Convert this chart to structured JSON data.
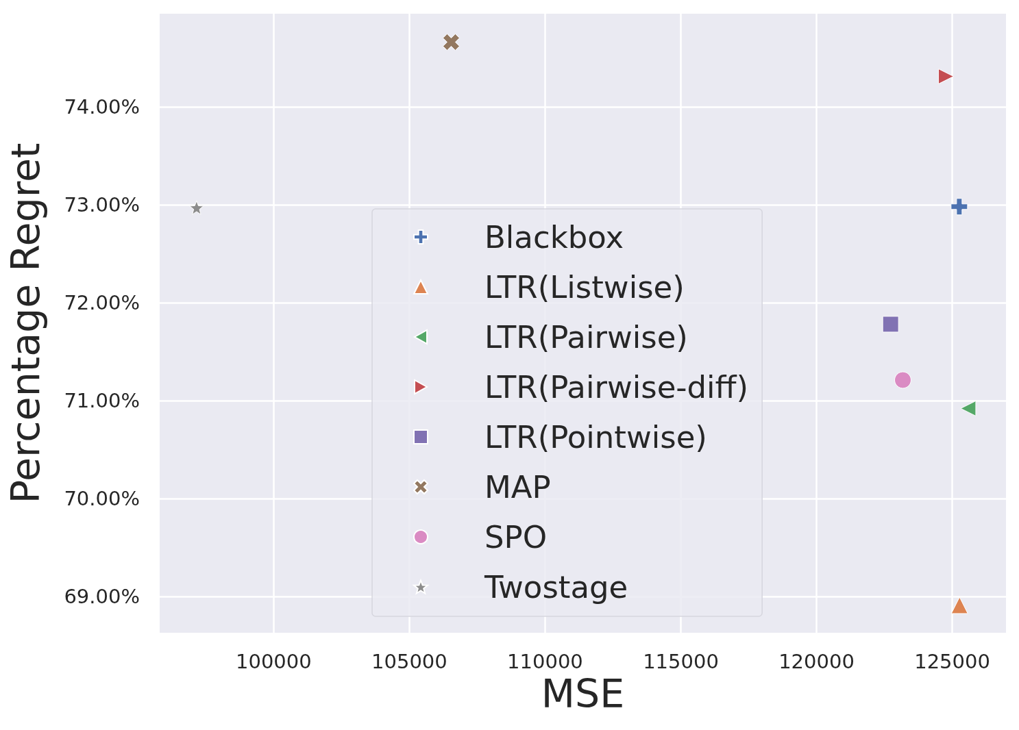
{
  "chart_data": {
    "type": "scatter",
    "xlabel": "MSE",
    "ylabel": "Percentage Regret",
    "xlim": [
      95800,
      126980
    ],
    "ylim": [
      68.63,
      74.95
    ],
    "xticks": [
      100000,
      105000,
      110000,
      115000,
      120000,
      125000
    ],
    "yticks": [
      {
        "value": 69,
        "label": "69.00%"
      },
      {
        "value": 70,
        "label": "70.00%"
      },
      {
        "value": 71,
        "label": "71.00%"
      },
      {
        "value": 72,
        "label": "72.00%"
      },
      {
        "value": 73,
        "label": "73.00%"
      },
      {
        "value": 74,
        "label": "74.00%"
      }
    ],
    "grid": true,
    "legend": "bottom",
    "series": [
      {
        "name": "Blackbox",
        "color": "#4c72b0",
        "marker": "plus",
        "x": [
          125260
        ],
        "values": [
          72.98
        ]
      },
      {
        "name": "LTR(Listwise)",
        "color": "#dd8452",
        "marker": "triangle",
        "x": [
          125270
        ],
        "values": [
          68.91
        ]
      },
      {
        "name": "LTR(Pairwise)",
        "color": "#55a868",
        "marker": "triangle-left",
        "x": [
          125590
        ],
        "values": [
          70.92
        ]
      },
      {
        "name": "LTR(Pairwise-diff)",
        "color": "#c44e52",
        "marker": "triangle-right",
        "x": [
          124770
        ],
        "values": [
          74.31
        ]
      },
      {
        "name": "LTR(Pointwise)",
        "color": "#8172b3",
        "marker": "square",
        "x": [
          122730
        ],
        "values": [
          71.78
        ]
      },
      {
        "name": "MAP",
        "color": "#937860",
        "marker": "x",
        "x": [
          106540
        ],
        "values": [
          74.66
        ]
      },
      {
        "name": "SPO",
        "color": "#da8bc3",
        "marker": "circle",
        "x": [
          123180
        ],
        "values": [
          71.21
        ]
      },
      {
        "name": "Twostage",
        "color": "#8c8c8c",
        "marker": "star",
        "x": [
          97160
        ],
        "values": [
          72.97
        ]
      }
    ]
  }
}
